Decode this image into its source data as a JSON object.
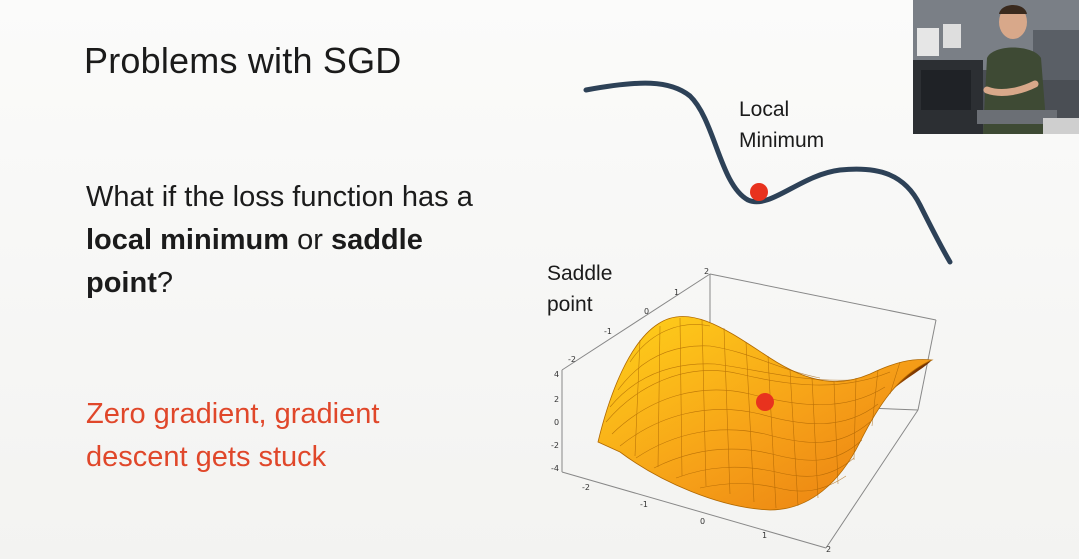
{
  "slide": {
    "title": "Problems with SGD",
    "question": {
      "part1": "What if the loss function has a ",
      "bold1": "local minimum",
      "part2": " or ",
      "bold2": "saddle point",
      "part3": "?"
    },
    "highlight": "Zero gradient, gradient descent gets stuck",
    "local_min_label_line1": "Local",
    "local_min_label_line2": "Minimum",
    "saddle_label_line1": "Saddle",
    "saddle_label_line2": "point",
    "saddle_ticks": {
      "z": [
        "4",
        "2",
        "0",
        "-2",
        "-4"
      ],
      "y": [
        "2",
        "1",
        "0",
        "-1",
        "-2"
      ],
      "x": [
        "-2",
        "-1",
        "0",
        "1",
        "2"
      ]
    }
  },
  "colors": {
    "accent": "#e0472a",
    "curve": "#2d4157",
    "ball": "#e8321e",
    "surface_light": "#ffd21a",
    "surface_dark": "#e87a10"
  },
  "webcam": {
    "description_icon": "presenter-video-icon"
  }
}
